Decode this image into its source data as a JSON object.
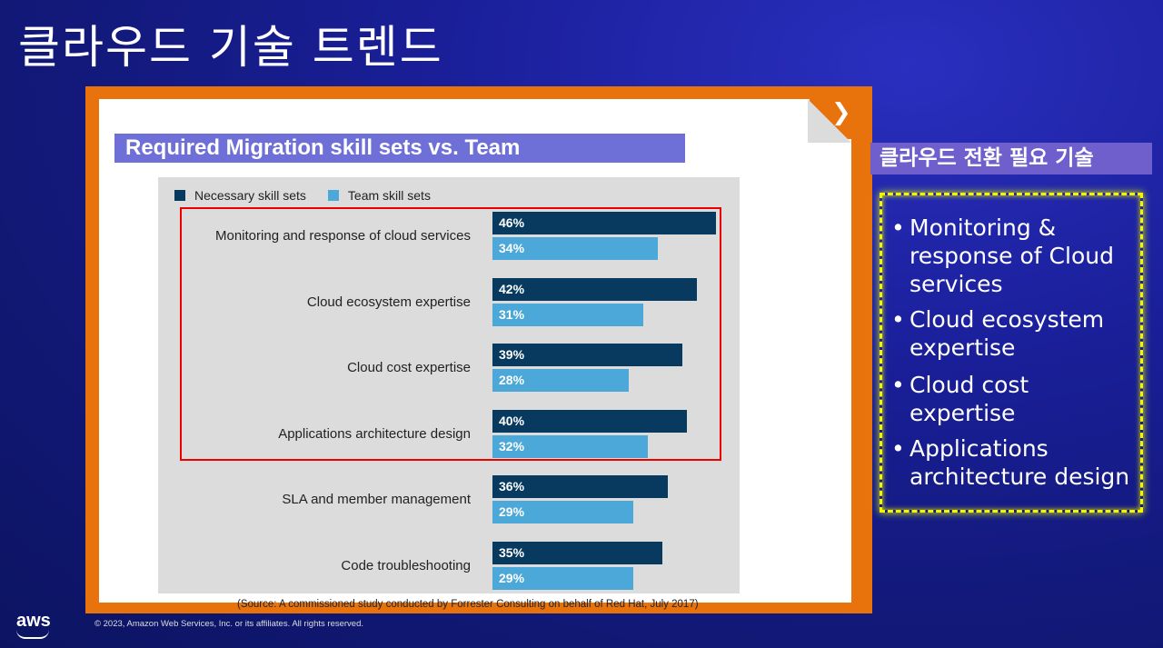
{
  "slide": {
    "title": "클라우드 기술 트렌드",
    "copyright": "© 2023, Amazon Web Services, Inc. or its affiliates. All rights reserved.",
    "logo_text": "aws"
  },
  "chart_heading": "Required Migration skill sets vs. Team",
  "source_note": "(Source:  A commissioned study conducted by Forrester Consulting on behalf of Red Hat, July 2017)",
  "side_panel": {
    "heading": "클라우드 전환 필요 기술",
    "items": [
      "Monitoring & response of Cloud services",
      "Cloud ecosystem expertise",
      "Cloud cost expertise",
      "Applications architecture design"
    ]
  },
  "colors": {
    "necessary": "#073a5e",
    "team": "#4ba8d8",
    "frame": "#e8720c",
    "highlight": "#ee0000"
  },
  "chart_data": {
    "type": "bar",
    "orientation": "horizontal",
    "categories": [
      "Monitoring and response of cloud services",
      "Cloud ecosystem expertise",
      "Cloud cost expertise",
      "Applications architecture design",
      "SLA and member management",
      "Code troubleshooting"
    ],
    "series": [
      {
        "name": "Necessary skill sets",
        "values": [
          46,
          42,
          39,
          40,
          36,
          35
        ],
        "labels": [
          "46%",
          "42%",
          "39%",
          "40%",
          "36%",
          "35%"
        ]
      },
      {
        "name": "Team skill sets",
        "values": [
          34,
          31,
          28,
          32,
          29,
          29
        ],
        "labels": [
          "34%",
          "31%",
          "28%",
          "32%",
          "29%",
          "29%"
        ]
      }
    ],
    "unit": "%",
    "legend": "top-left",
    "grid": false,
    "highlighted_categories": [
      0,
      1,
      2,
      3
    ]
  }
}
